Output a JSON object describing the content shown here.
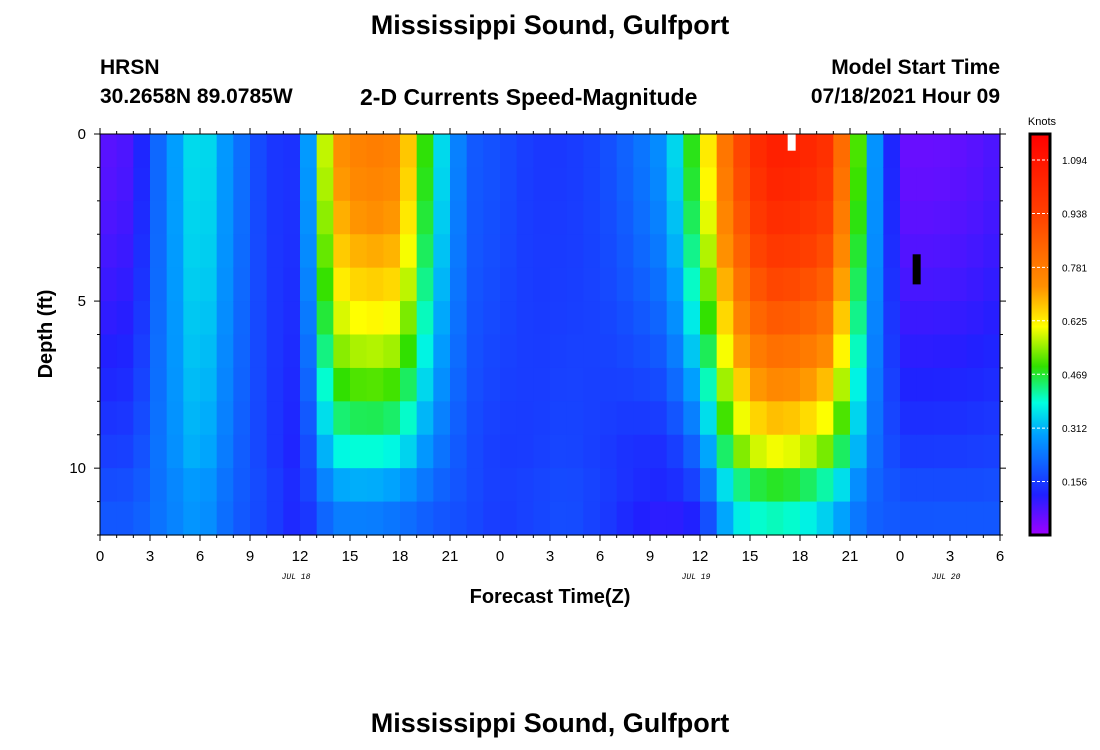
{
  "header": {
    "title": "Mississippi Sound, Gulfport",
    "station_id": "HRSN",
    "coordinates": "30.2658N  89.0785W",
    "subtitle": "2-D Currents Speed-Magnitude",
    "model_start_label": "Model Start Time",
    "model_start_value": "07/18/2021 Hour 09"
  },
  "footer": {
    "title": "Mississippi Sound, Gulfport"
  },
  "colors": {
    "scale": [
      "#a000ff",
      "#2020ff",
      "#00a0ff",
      "#00ffe0",
      "#30e000",
      "#ffff00",
      "#ff9000",
      "#ff4000",
      "#ff0000"
    ]
  },
  "chart_data": {
    "type": "heatmap",
    "title": "2-D Currents Speed-Magnitude",
    "xlabel": "Forecast Time(Z)",
    "ylabel": "Depth (ft)",
    "x_ticks": [
      "0",
      "3",
      "6",
      "9",
      "12",
      "15",
      "18",
      "21",
      "0",
      "3",
      "6",
      "9",
      "12",
      "15",
      "18",
      "21",
      "0",
      "3",
      "6"
    ],
    "x_range_hours": [
      0,
      54
    ],
    "date_labels": [
      {
        "hour": 12,
        "label": "JUL 18"
      },
      {
        "hour": 36,
        "label": "JUL 19"
      },
      {
        "hour": 51,
        "label": "JUL 20"
      }
    ],
    "y_ticks": [
      "0",
      "5",
      "10"
    ],
    "y_range_ft": [
      0,
      12
    ],
    "colorbar": {
      "unit": "Knots",
      "ticks": [
        "1.094",
        "0.938",
        "0.781",
        "0.625",
        "0.469",
        "0.312",
        "0.156"
      ],
      "range": [
        0,
        1.17
      ]
    },
    "speed_at_depth_profile_knots": {
      "hours": [
        0,
        2,
        4,
        6,
        8,
        10,
        12,
        14,
        16,
        18,
        20,
        22,
        24,
        26,
        28,
        30,
        32,
        34,
        36,
        38,
        40,
        42,
        44,
        46,
        48,
        50,
        52,
        54
      ],
      "surface": [
        0.06,
        0.08,
        0.26,
        0.38,
        0.25,
        0.15,
        0.14,
        0.72,
        0.78,
        0.76,
        0.4,
        0.2,
        0.18,
        0.15,
        0.15,
        0.17,
        0.22,
        0.28,
        0.55,
        0.88,
        1.06,
        1.05,
        0.98,
        0.35,
        0.05,
        0.05,
        0.06,
        0.08
      ],
      "bottom": [
        0.2,
        0.2,
        0.25,
        0.3,
        0.2,
        0.16,
        0.1,
        0.22,
        0.22,
        0.2,
        0.18,
        0.17,
        0.14,
        0.16,
        0.18,
        0.15,
        0.1,
        0.07,
        0.08,
        0.35,
        0.4,
        0.38,
        0.3,
        0.2,
        0.2,
        0.2,
        0.2,
        0.2
      ]
    },
    "missing_data_markers": [
      {
        "hour": 41.5,
        "depth_ft": [
          0,
          0.5
        ],
        "color": "#ffffff"
      },
      {
        "hour": 49,
        "depth_ft": [
          3.6,
          4.5
        ],
        "color": "#000000"
      }
    ]
  }
}
